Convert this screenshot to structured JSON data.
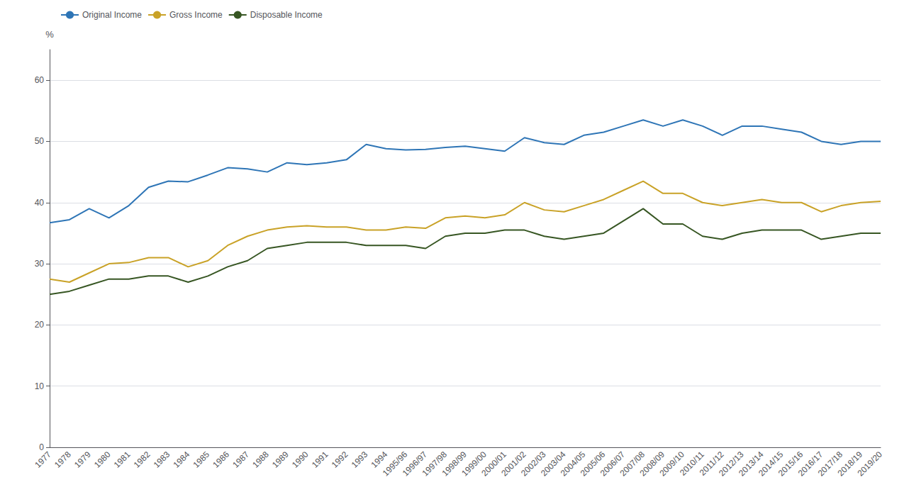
{
  "chart_data": {
    "type": "line",
    "ylabel": "%",
    "categories": [
      "1977",
      "1978",
      "1979",
      "1980",
      "1981",
      "1982",
      "1983",
      "1984",
      "1985",
      "1986",
      "1987",
      "1988",
      "1989",
      "1990",
      "1991",
      "1992",
      "1993",
      "1994",
      "1995/96",
      "1996/97",
      "1997/98",
      "1998/99",
      "1999/00",
      "2000/01",
      "2001/02",
      "2002/03",
      "2003/04",
      "2004/05",
      "2005/06",
      "2006/07",
      "2007/08",
      "2008/09",
      "2009/10",
      "2010/11",
      "2011/12",
      "2012/13",
      "2013/14",
      "2014/15",
      "2015/16",
      "2016/17",
      "2017/18",
      "2018/19",
      "2019/20"
    ],
    "series": [
      {
        "name": "Original Income",
        "color": "#2E75B6",
        "values": [
          36.7,
          37.2,
          39.0,
          37.5,
          39.5,
          42.5,
          43.5,
          43.4,
          44.5,
          45.7,
          45.5,
          45.0,
          46.5,
          46.2,
          46.5,
          47.0,
          49.5,
          48.8,
          48.6,
          48.7,
          49.0,
          49.2,
          48.8,
          48.4,
          50.6,
          49.8,
          49.5,
          51.0,
          51.5,
          52.5,
          53.5,
          52.5,
          53.5,
          52.5,
          51.0,
          52.5,
          52.5,
          52.0,
          51.5,
          50.0,
          49.5,
          50.0,
          50.0
        ]
      },
      {
        "name": "Gross Income",
        "color": "#C9A227",
        "values": [
          27.5,
          27.0,
          28.5,
          30.0,
          30.2,
          31.0,
          31.0,
          29.5,
          30.5,
          33.0,
          34.5,
          35.5,
          36.0,
          36.2,
          36.0,
          36.0,
          35.5,
          35.5,
          36.0,
          35.8,
          37.5,
          37.8,
          37.5,
          38.0,
          40.0,
          38.8,
          38.5,
          39.5,
          40.5,
          42.0,
          43.5,
          41.5,
          41.5,
          40.0,
          39.5,
          40.0,
          40.5,
          40.0,
          40.0,
          38.5,
          39.5,
          40.0,
          40.2
        ]
      },
      {
        "name": "Disposable Income",
        "color": "#375623",
        "values": [
          25.0,
          25.5,
          26.5,
          27.5,
          27.5,
          28.0,
          28.0,
          27.0,
          28.0,
          29.5,
          30.5,
          32.5,
          33.0,
          33.5,
          33.5,
          33.5,
          33.0,
          33.0,
          33.0,
          32.5,
          34.5,
          35.0,
          35.0,
          35.5,
          35.5,
          34.5,
          34.0,
          34.5,
          35.0,
          37.0,
          39.0,
          36.5,
          36.5,
          34.5,
          34.0,
          35.0,
          35.5,
          35.5,
          35.5,
          34.0,
          34.5,
          35.0,
          35.0
        ]
      }
    ],
    "ylim": [
      0,
      65
    ],
    "yticks": [
      0,
      10,
      20,
      30,
      40,
      50,
      60
    ],
    "grid": true,
    "legend": "upper left"
  }
}
